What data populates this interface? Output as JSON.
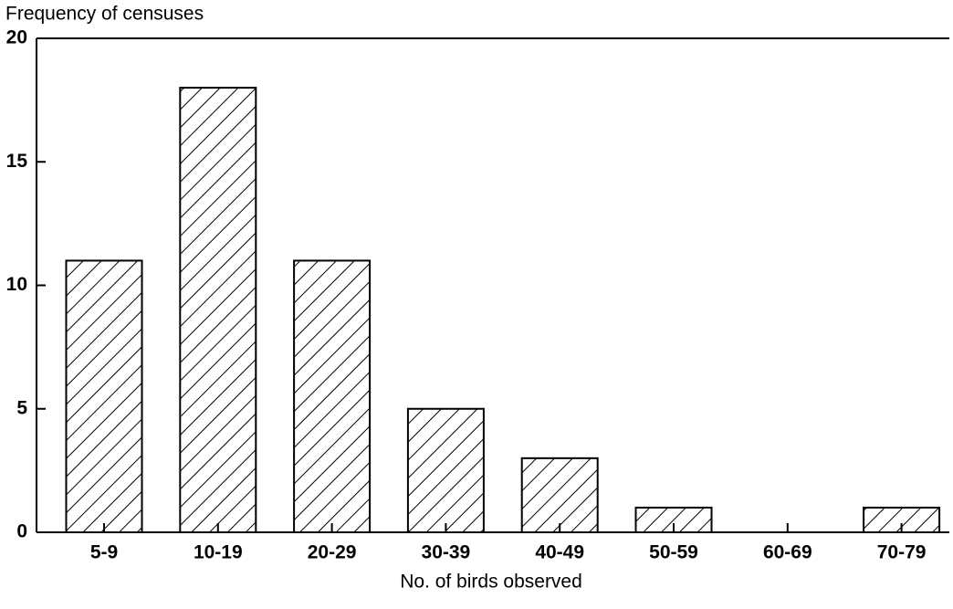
{
  "chart_data": {
    "type": "bar",
    "ylabel": "Frequency of censuses",
    "xlabel": "No. of birds observed",
    "categories": [
      "5-9",
      "10-19",
      "20-29",
      "30-39",
      "40-49",
      "50-59",
      "60-69",
      "70-79"
    ],
    "values": [
      11,
      18,
      11,
      5,
      3,
      1,
      0,
      1
    ],
    "color": "#000000",
    "ylim": [
      0,
      20
    ],
    "yticks": [
      0,
      5,
      10,
      15,
      20
    ],
    "grid": false
  }
}
